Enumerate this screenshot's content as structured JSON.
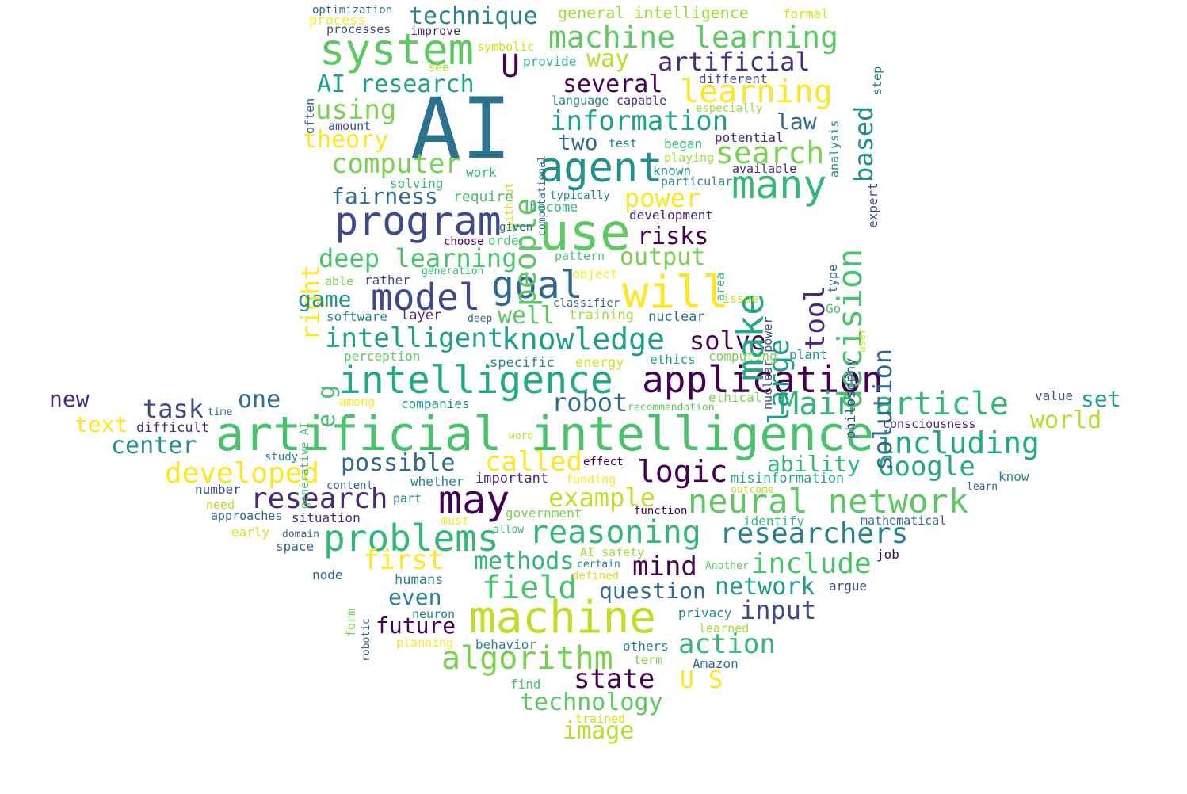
{
  "words": [
    {
      "text": "AI",
      "color": "#2c728e"
    },
    {
      "text": "artificial intelligence",
      "color": "#4ac16d"
    },
    {
      "text": "machine",
      "color": "#bddf26"
    },
    {
      "text": "use",
      "color": "#5ec962"
    },
    {
      "text": "agent",
      "color": "#21918c"
    },
    {
      "text": "will",
      "color": "#fde725"
    },
    {
      "text": "system",
      "color": "#5ec962"
    },
    {
      "text": "program",
      "color": "#3e4989"
    },
    {
      "text": "intelligence",
      "color": "#22a884"
    },
    {
      "text": "application",
      "color": "#440154"
    },
    {
      "text": "may",
      "color": "#440154"
    },
    {
      "text": "problems",
      "color": "#35b779"
    },
    {
      "text": "model",
      "color": "#3e4989"
    },
    {
      "text": "goal",
      "color": "#31688e"
    },
    {
      "text": "machine learning",
      "color": "#5ec962"
    },
    {
      "text": "neural network",
      "color": "#5ec962"
    },
    {
      "text": "algorithm",
      "color": "#7ad151"
    },
    {
      "text": "reasoning",
      "color": "#35b779"
    },
    {
      "text": "Main article",
      "color": "#35b779"
    },
    {
      "text": "research",
      "color": "#482878"
    },
    {
      "text": "knowledge",
      "color": "#1f9e89"
    },
    {
      "text": "intelligent",
      "color": "#1f9e89"
    },
    {
      "text": "researchers",
      "color": "#26828e"
    },
    {
      "text": "many",
      "color": "#35b779"
    },
    {
      "text": "learning",
      "color": "#fde725"
    },
    {
      "text": "including",
      "color": "#22a884"
    },
    {
      "text": "search",
      "color": "#7ad151"
    },
    {
      "text": "information",
      "color": "#1f9e89"
    },
    {
      "text": "technique",
      "color": "#26828e"
    },
    {
      "text": "artificial",
      "color": "#472d7b"
    },
    {
      "text": "AI research",
      "color": "#1f9e89"
    },
    {
      "text": "computer",
      "color": "#7ad151"
    },
    {
      "text": "deep learning",
      "color": "#4ac16d"
    },
    {
      "text": "field",
      "color": "#4ac16d"
    },
    {
      "text": "first",
      "color": "#fde725"
    },
    {
      "text": "developed",
      "color": "#fde725"
    },
    {
      "text": "called",
      "color": "#fde725"
    },
    {
      "text": "logic",
      "color": "#440154"
    },
    {
      "text": "Google",
      "color": "#22a884"
    },
    {
      "text": "include",
      "color": "#4ac16d"
    },
    {
      "text": "example",
      "color": "#bddf26"
    },
    {
      "text": "possible",
      "color": "#31688e"
    },
    {
      "text": "methods",
      "color": "#35b779"
    },
    {
      "text": "mind",
      "color": "#440154"
    },
    {
      "text": "state",
      "color": "#440154"
    },
    {
      "text": "technology",
      "color": "#5ec962"
    },
    {
      "text": "action",
      "color": "#35b779"
    },
    {
      "text": "robot",
      "color": "#31688e"
    },
    {
      "text": "solve",
      "color": "#440154"
    },
    {
      "text": "input",
      "color": "#3e4989"
    },
    {
      "text": "network",
      "color": "#1f9e89"
    },
    {
      "text": "question",
      "color": "#31688e"
    },
    {
      "text": "power",
      "color": "#fde725"
    },
    {
      "text": "output",
      "color": "#7ad151"
    },
    {
      "text": "risks",
      "color": "#440154"
    },
    {
      "text": "fairness",
      "color": "#31688e"
    },
    {
      "text": "using",
      "color": "#7ad151"
    },
    {
      "text": "theory",
      "color": "#fde725"
    },
    {
      "text": "several",
      "color": "#440154"
    },
    {
      "text": "way",
      "color": "#b5de2b"
    },
    {
      "text": "U",
      "color": "#440154"
    },
    {
      "text": "people",
      "color": "#5ec962"
    },
    {
      "text": "two",
      "color": "#31688e"
    },
    {
      "text": "law",
      "color": "#31688e"
    },
    {
      "text": "make",
      "color": "#22a884"
    },
    {
      "text": "decision",
      "color": "#4ac16d"
    },
    {
      "text": "large",
      "color": "#1f9e89"
    },
    {
      "text": "tool",
      "color": "#482878"
    },
    {
      "text": "solution",
      "color": "#31688e"
    },
    {
      "text": "based",
      "color": "#21918c"
    },
    {
      "text": "right",
      "color": "#fde725"
    },
    {
      "text": "game",
      "color": "#21918c"
    },
    {
      "text": "well",
      "color": "#5ec962"
    },
    {
      "text": "task",
      "color": "#3e4989"
    },
    {
      "text": "one",
      "color": "#2c728e"
    },
    {
      "text": "new",
      "color": "#482878"
    },
    {
      "text": "text",
      "color": "#fde725"
    },
    {
      "text": "center",
      "color": "#21918c"
    },
    {
      "text": "world",
      "color": "#b5de2b"
    },
    {
      "text": "set",
      "color": "#1f9e89"
    },
    {
      "text": "ability",
      "color": "#35b779"
    },
    {
      "text": "even",
      "color": "#26828e"
    },
    {
      "text": "future",
      "color": "#440154"
    },
    {
      "text": "image",
      "color": "#b5de2b"
    },
    {
      "text": "U S",
      "color": "#fde725"
    },
    {
      "text": "e g",
      "color": "#4ac16d"
    },
    {
      "text": "general intelligence",
      "color": "#a0da39"
    },
    {
      "text": "formal",
      "color": "#d2e21b"
    },
    {
      "text": "optimization",
      "color": "#31688e"
    },
    {
      "text": "process",
      "color": "#fde725"
    },
    {
      "text": "processes",
      "color": "#3e4989"
    },
    {
      "text": "improve",
      "color": "#482878"
    },
    {
      "text": "symbolic",
      "color": "#d2e21b"
    },
    {
      "text": "provide",
      "color": "#35b779"
    },
    {
      "text": "see",
      "color": "#b5de2b"
    },
    {
      "text": "step",
      "color": "#26828e"
    },
    {
      "text": "often",
      "color": "#31688e"
    },
    {
      "text": "analysis",
      "color": "#26828e"
    },
    {
      "text": "different",
      "color": "#3e4989"
    },
    {
      "text": "language",
      "color": "#26828e"
    },
    {
      "text": "capable",
      "color": "#482878"
    },
    {
      "text": "especially",
      "color": "#a0da39"
    },
    {
      "text": "amount",
      "color": "#3e4989"
    },
    {
      "text": "computational",
      "color": "#31688e"
    },
    {
      "text": "without",
      "color": "#d2e21b"
    },
    {
      "text": "test",
      "color": "#26828e"
    },
    {
      "text": "began",
      "color": "#35b779"
    },
    {
      "text": "potential",
      "color": "#482878"
    },
    {
      "text": "playing",
      "color": "#a0da39"
    },
    {
      "text": "expert",
      "color": "#3e4989"
    },
    {
      "text": "known",
      "color": "#21918c"
    },
    {
      "text": "available",
      "color": "#482878"
    },
    {
      "text": "work",
      "color": "#35b779"
    },
    {
      "text": "solving",
      "color": "#35b779"
    },
    {
      "text": "particular",
      "color": "#26828e"
    },
    {
      "text": "require",
      "color": "#4ac16d"
    },
    {
      "text": "typically",
      "color": "#26828e"
    },
    {
      "text": "become",
      "color": "#35b779"
    },
    {
      "text": "development",
      "color": "#482878"
    },
    {
      "text": "given",
      "color": "#31688e"
    },
    {
      "text": "choose",
      "color": "#440154"
    },
    {
      "text": "order",
      "color": "#4ac16d"
    },
    {
      "text": "pattern",
      "color": "#4ac16d"
    },
    {
      "text": "type",
      "color": "#31688e"
    },
    {
      "text": "area",
      "color": "#35b779"
    },
    {
      "text": "nuclear power",
      "color": "#3e4989"
    },
    {
      "text": "philosophy",
      "color": "#3e4989"
    },
    {
      "text": "generation",
      "color": "#35b779"
    },
    {
      "text": "object",
      "color": "#fde725"
    },
    {
      "text": "able",
      "color": "#7ad151"
    },
    {
      "text": "rather",
      "color": "#3e4989"
    },
    {
      "text": "classifier",
      "color": "#31688e"
    },
    {
      "text": "issue",
      "color": "#b5de2b"
    },
    {
      "text": "Go",
      "color": "#4ac16d"
    },
    {
      "text": "user",
      "color": "#d2e21b"
    },
    {
      "text": "software",
      "color": "#26828e"
    },
    {
      "text": "layer",
      "color": "#482878"
    },
    {
      "text": "deep",
      "color": "#31688e"
    },
    {
      "text": "training",
      "color": "#a0da39"
    },
    {
      "text": "nuclear",
      "color": "#2c728e"
    },
    {
      "text": "generative AI",
      "color": "#4ac16d"
    },
    {
      "text": "perception",
      "color": "#5ec962"
    },
    {
      "text": "ethics",
      "color": "#1f9e89"
    },
    {
      "text": "computing",
      "color": "#7ad151"
    },
    {
      "text": "plant",
      "color": "#21918c"
    },
    {
      "text": "specific",
      "color": "#26828e"
    },
    {
      "text": "energy",
      "color": "#d2e21b"
    },
    {
      "text": "among",
      "color": "#fde725"
    },
    {
      "text": "companies",
      "color": "#21918c"
    },
    {
      "text": "ethical",
      "color": "#7ad151"
    },
    {
      "text": "recommendation",
      "color": "#5ec962"
    },
    {
      "text": "value",
      "color": "#3e4989"
    },
    {
      "text": "consciousness",
      "color": "#482878"
    },
    {
      "text": "time",
      "color": "#31688e"
    },
    {
      "text": "difficult",
      "color": "#482878"
    },
    {
      "text": "word",
      "color": "#b5de2b"
    },
    {
      "text": "effect",
      "color": "#440154"
    },
    {
      "text": "study",
      "color": "#26828e"
    },
    {
      "text": "content",
      "color": "#31688e"
    },
    {
      "text": "whether",
      "color": "#26828e"
    },
    {
      "text": "important",
      "color": "#482878"
    },
    {
      "text": "funding",
      "color": "#fde725"
    },
    {
      "text": "misinformation",
      "color": "#22a884"
    },
    {
      "text": "know",
      "color": "#26828e"
    },
    {
      "text": "learn",
      "color": "#31688e"
    },
    {
      "text": "number",
      "color": "#3e4989"
    },
    {
      "text": "part",
      "color": "#26828e"
    },
    {
      "text": "outcome",
      "color": "#b5de2b"
    },
    {
      "text": "need",
      "color": "#b5de2b"
    },
    {
      "text": "government",
      "color": "#7ad151"
    },
    {
      "text": "function",
      "color": "#440154"
    },
    {
      "text": "identify",
      "color": "#35b779"
    },
    {
      "text": "mathematical",
      "color": "#31688e"
    },
    {
      "text": "approaches",
      "color": "#31688e"
    },
    {
      "text": "situation",
      "color": "#482878"
    },
    {
      "text": "must",
      "color": "#fde725"
    },
    {
      "text": "allow",
      "color": "#35b779"
    },
    {
      "text": "early",
      "color": "#d2e21b"
    },
    {
      "text": "domain",
      "color": "#31688e"
    },
    {
      "text": "space",
      "color": "#31688e"
    },
    {
      "text": "AI safety",
      "color": "#a0da39"
    },
    {
      "text": "job",
      "color": "#440154"
    },
    {
      "text": "node",
      "color": "#31688e"
    },
    {
      "text": "humans",
      "color": "#26828e"
    },
    {
      "text": "defined",
      "color": "#d2e21b"
    },
    {
      "text": "certain",
      "color": "#26828e"
    },
    {
      "text": "Another",
      "color": "#5ec962"
    },
    {
      "text": "argue",
      "color": "#3e4989"
    },
    {
      "text": "form",
      "color": "#7ad151"
    },
    {
      "text": "robotic",
      "color": "#31688e"
    },
    {
      "text": "neuron",
      "color": "#26828e"
    },
    {
      "text": "privacy",
      "color": "#26828e"
    },
    {
      "text": "learned",
      "color": "#a0da39"
    },
    {
      "text": "planning",
      "color": "#fde725"
    },
    {
      "text": "behavior",
      "color": "#26828e"
    },
    {
      "text": "others",
      "color": "#26828e"
    },
    {
      "text": "term",
      "color": "#7ad151"
    },
    {
      "text": "Amazon",
      "color": "#31688e"
    },
    {
      "text": "find",
      "color": "#4ac16d"
    },
    {
      "text": "trained",
      "color": "#d2e21b"
    }
  ]
}
